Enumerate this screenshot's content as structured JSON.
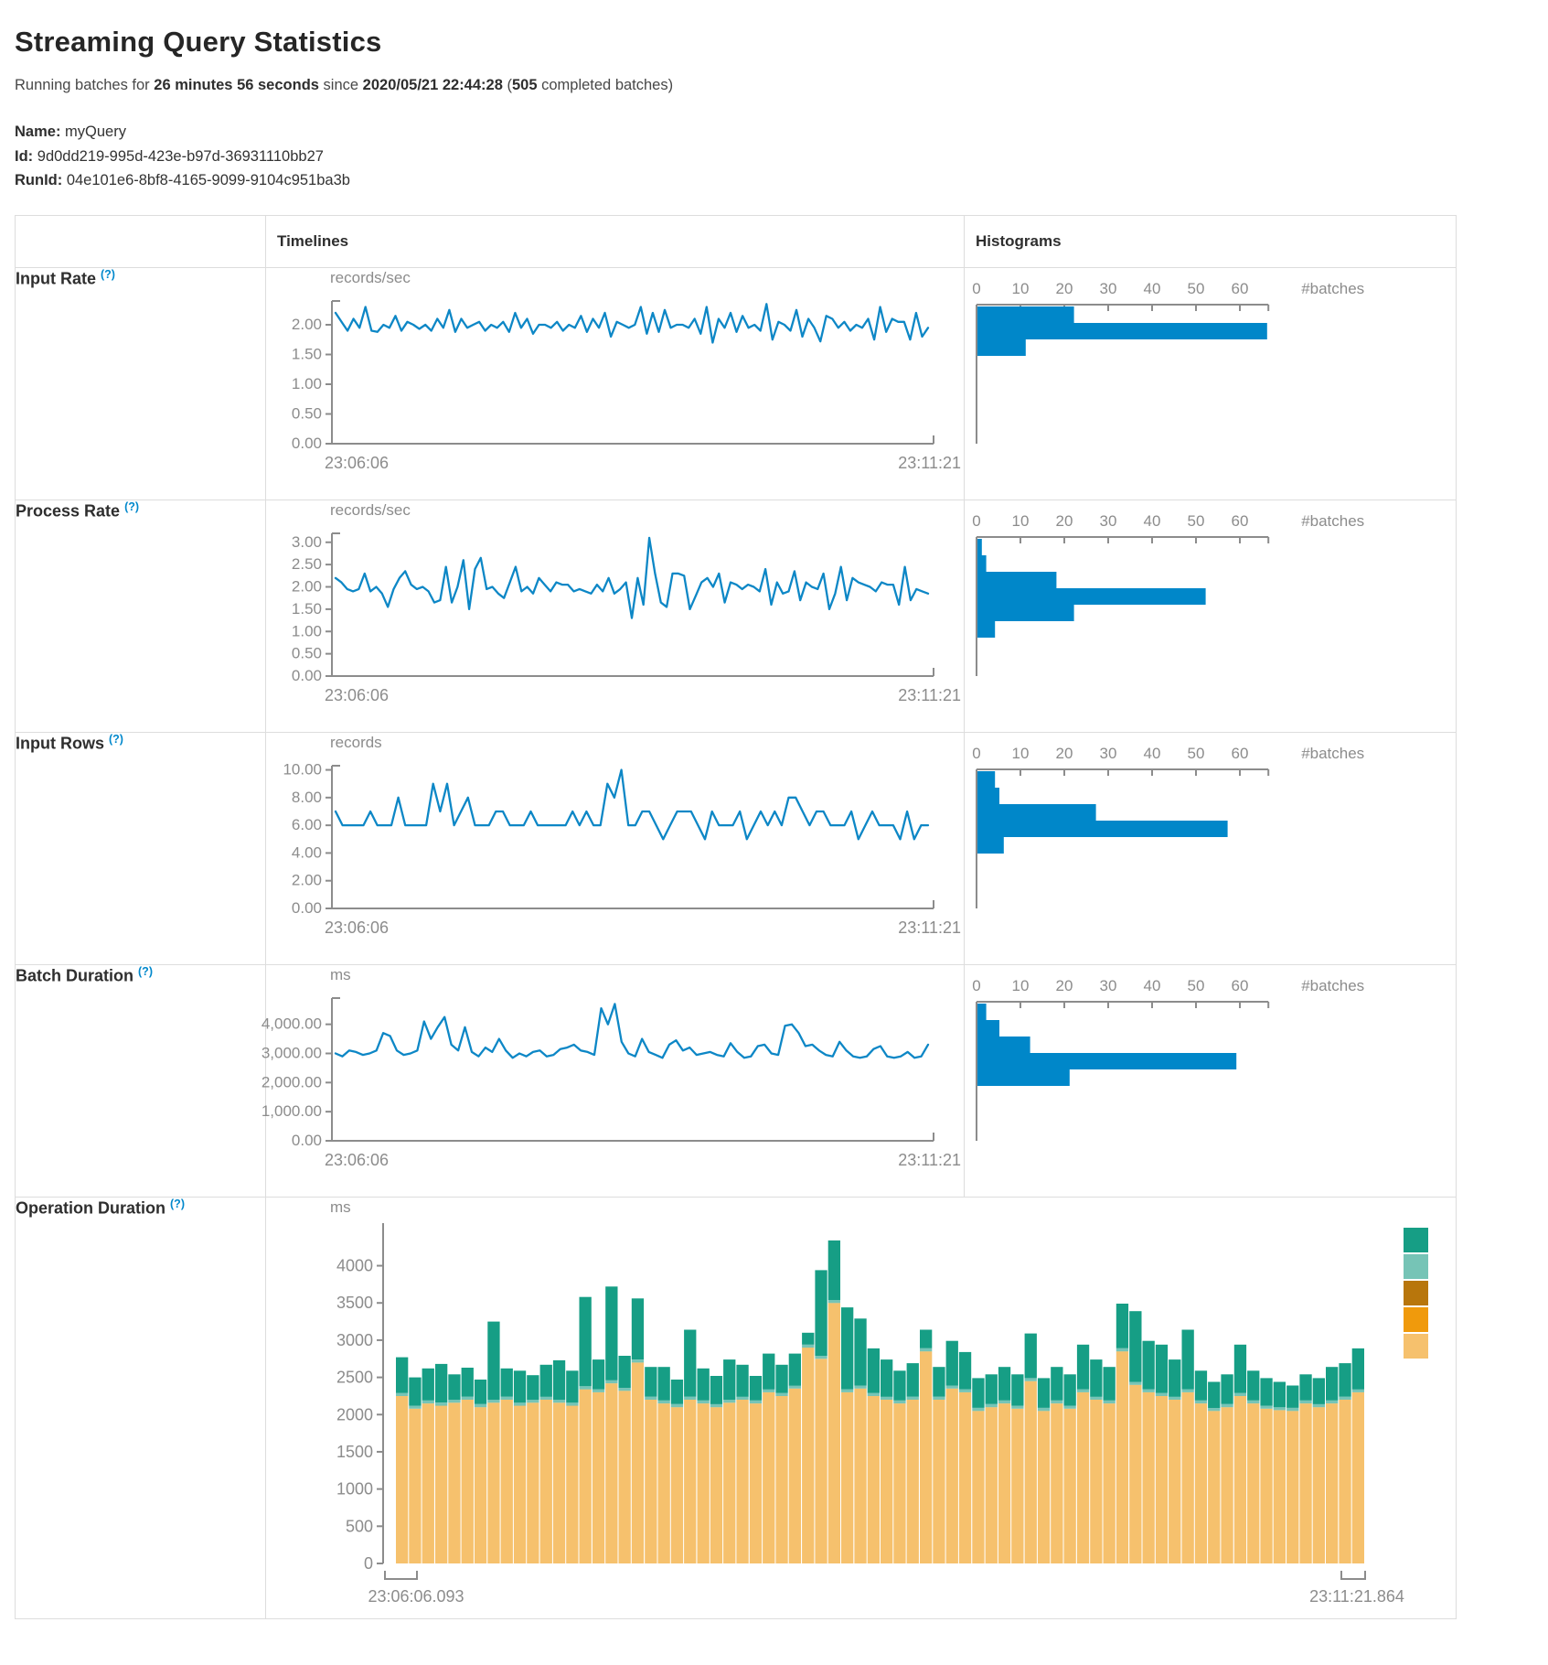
{
  "page": {
    "title": "Streaming Query Statistics",
    "summary": {
      "prefix": "Running batches for",
      "duration": "26 minutes 56 seconds",
      "since": "since",
      "start_time": "2020/05/21 22:44:28",
      "paren_open": "(",
      "completed_count": "505",
      "completed_suffix": "completed batches)"
    },
    "meta": [
      {
        "label": "Name:",
        "value": "myQuery"
      },
      {
        "label": "Id:",
        "value": "9d0dd219-995d-423e-b97d-36931110bb27"
      },
      {
        "label": "RunId:",
        "value": "04e101e6-8bf8-4165-9099-9104c951ba3b"
      }
    ]
  },
  "table": {
    "header": {
      "timelines": "Timelines",
      "histograms": "Histograms"
    },
    "help_marker": "(?)",
    "rows": [
      {
        "label": "Input Rate"
      },
      {
        "label": "Process Rate"
      },
      {
        "label": "Input Rows"
      },
      {
        "label": "Batch Duration"
      },
      {
        "label": "Operation Duration"
      }
    ]
  },
  "colors": {
    "accent_blue": "#0088cc",
    "line_blue": "#0d87c6",
    "hist_blue": "#0087c9",
    "axis_gray": "#8c8c8c"
  },
  "chart_data": [
    {
      "id": "input_rate_timeline",
      "type": "line",
      "title": "Input Rate timeline",
      "unit": "records/sec",
      "x_start": "23:06:06",
      "x_end": "23:11:21",
      "ymax": 2.4,
      "ytick_values": [
        0,
        0.5,
        1,
        1.5,
        2
      ],
      "ytick_labels": [
        "0.00",
        "0.50",
        "1.00",
        "1.50",
        "2.00"
      ],
      "color": "#0d87c6",
      "values": [
        2.2,
        2.05,
        1.9,
        2.1,
        1.95,
        2.3,
        1.9,
        1.88,
        2.0,
        1.95,
        2.15,
        1.9,
        2.05,
        2.0,
        1.93,
        2.0,
        1.9,
        2.1,
        1.95,
        2.25,
        1.88,
        2.1,
        1.95,
        2.0,
        2.05,
        1.9,
        2.0,
        1.95,
        2.05,
        1.88,
        2.2,
        1.95,
        2.1,
        1.85,
        2.0,
        2.0,
        1.95,
        2.05,
        1.9,
        2.0,
        1.95,
        2.15,
        1.88,
        2.1,
        1.95,
        2.2,
        1.8,
        2.05,
        2.0,
        1.95,
        2.0,
        2.3,
        1.85,
        2.2,
        1.88,
        2.25,
        1.95,
        2.0,
        2.0,
        1.95,
        2.1,
        1.85,
        2.3,
        1.7,
        2.1,
        1.95,
        2.2,
        1.88,
        2.15,
        1.95,
        2.0,
        1.9,
        2.35,
        1.75,
        2.05,
        2.0,
        1.9,
        2.25,
        1.8,
        2.1,
        1.95,
        1.72,
        2.15,
        2.1,
        1.95,
        2.05,
        1.9,
        2.0,
        1.95,
        2.1,
        1.75,
        2.3,
        1.88,
        2.1,
        2.05,
        2.05,
        1.75,
        2.2,
        1.8,
        1.95
      ]
    },
    {
      "id": "input_rate_hist",
      "type": "bar",
      "title": "Input Rate histogram",
      "axis_label": "#batches",
      "xtick_values": [
        0,
        10,
        20,
        30,
        40,
        50,
        60
      ],
      "xmax": 66.5,
      "color": "#0087c9",
      "counts": [
        22,
        66,
        11
      ]
    },
    {
      "id": "process_rate_timeline",
      "type": "line",
      "title": "Process Rate timeline",
      "unit": "records/sec",
      "x_start": "23:06:06",
      "x_end": "23:11:21",
      "ymax": 3.2,
      "ytick_values": [
        0,
        0.5,
        1,
        1.5,
        2,
        2.5,
        3
      ],
      "ytick_labels": [
        "0.00",
        "0.50",
        "1.00",
        "1.50",
        "2.00",
        "2.50",
        "3.00"
      ],
      "color": "#0d87c6",
      "values": [
        2.2,
        2.1,
        1.95,
        1.9,
        1.95,
        2.3,
        1.9,
        2.0,
        1.85,
        1.55,
        1.95,
        2.2,
        2.35,
        2.05,
        1.95,
        2.0,
        1.9,
        1.65,
        1.7,
        2.45,
        1.65,
        2.0,
        2.6,
        1.5,
        2.4,
        2.65,
        1.95,
        2.0,
        1.85,
        1.75,
        2.1,
        2.45,
        1.9,
        2.0,
        1.85,
        2.2,
        2.05,
        1.9,
        2.1,
        2.05,
        2.05,
        1.9,
        1.95,
        1.9,
        1.85,
        2.05,
        1.9,
        2.2,
        1.85,
        1.95,
        2.1,
        1.3,
        2.2,
        1.6,
        3.1,
        2.3,
        1.65,
        1.55,
        2.3,
        2.3,
        2.25,
        1.5,
        1.8,
        2.1,
        2.2,
        2.0,
        2.3,
        1.65,
        2.1,
        2.05,
        1.95,
        2.05,
        2.0,
        1.9,
        2.4,
        1.6,
        2.1,
        1.85,
        1.9,
        2.35,
        1.7,
        2.1,
        2.0,
        1.95,
        2.3,
        1.5,
        1.85,
        2.45,
        1.7,
        2.2,
        2.1,
        2.05,
        2.0,
        1.9,
        2.1,
        2.05,
        2.05,
        1.6,
        2.45,
        1.7,
        1.95,
        1.9,
        1.85
      ]
    },
    {
      "id": "process_rate_hist",
      "type": "bar",
      "title": "Process Rate histogram",
      "axis_label": "#batches",
      "xtick_values": [
        0,
        10,
        20,
        30,
        40,
        50,
        60
      ],
      "xmax": 66.5,
      "color": "#0087c9",
      "counts": [
        1,
        2,
        18,
        52,
        22,
        4
      ]
    },
    {
      "id": "input_rows_timeline",
      "type": "line",
      "title": "Input Rows timeline",
      "unit": "records",
      "x_start": "23:06:06",
      "x_end": "23:11:21",
      "ymax": 10.3,
      "ytick_values": [
        0,
        2,
        4,
        6,
        8,
        10
      ],
      "ytick_labels": [
        "0.00",
        "2.00",
        "4.00",
        "6.00",
        "8.00",
        "10.00"
      ],
      "color": "#0d87c6",
      "values": [
        7,
        6,
        6,
        6,
        6,
        7,
        6,
        6,
        6,
        8,
        6,
        6,
        6,
        6,
        9,
        7,
        9,
        6,
        7,
        8,
        6,
        6,
        6,
        7,
        7,
        6,
        6,
        6,
        7,
        6,
        6,
        6,
        6,
        6,
        7,
        6,
        7,
        6,
        6,
        9,
        8,
        10,
        6,
        6,
        7,
        7,
        6,
        5,
        6,
        7,
        7,
        7,
        6,
        5,
        7,
        6,
        6,
        6,
        7,
        5,
        6,
        7,
        6,
        7,
        6,
        8,
        8,
        7,
        6,
        7,
        7,
        6,
        6,
        6,
        7,
        5,
        6,
        7,
        6,
        6,
        6,
        5,
        7,
        5,
        6,
        6
      ]
    },
    {
      "id": "input_rows_hist",
      "type": "bar",
      "title": "Input Rows histogram",
      "axis_label": "#batches",
      "xtick_values": [
        0,
        10,
        20,
        30,
        40,
        50,
        60
      ],
      "xmax": 66.5,
      "color": "#0087c9",
      "counts": [
        4,
        5,
        27,
        57,
        6
      ]
    },
    {
      "id": "batch_duration_timeline",
      "type": "line",
      "title": "Batch Duration timeline",
      "unit": "ms",
      "x_start": "23:06:06",
      "x_end": "23:11:21",
      "ymax": 4900,
      "ytick_values": [
        0,
        1000,
        2000,
        3000,
        4000
      ],
      "ytick_labels": [
        "0.00",
        "1,000.00",
        "2,000.00",
        "3,000.00",
        "4,000.00"
      ],
      "color": "#0d87c6",
      "values": [
        3000,
        2900,
        3100,
        3050,
        2950,
        3000,
        3100,
        3700,
        3600,
        3100,
        2950,
        3000,
        3100,
        4100,
        3500,
        3900,
        4250,
        3300,
        3100,
        3900,
        3050,
        2900,
        3200,
        3050,
        3500,
        3100,
        2850,
        3000,
        2900,
        3050,
        3100,
        2900,
        2950,
        3150,
        3200,
        3300,
        3100,
        3050,
        2950,
        4550,
        4000,
        4700,
        3400,
        3000,
        2900,
        3500,
        3050,
        2950,
        2850,
        3300,
        3450,
        3100,
        3200,
        2950,
        3000,
        3050,
        2950,
        2900,
        3350,
        3050,
        2850,
        2900,
        3250,
        3300,
        3000,
        2950,
        3950,
        4000,
        3700,
        3250,
        3300,
        3100,
        2950,
        2900,
        3400,
        3100,
        2900,
        2850,
        2900,
        3150,
        3250,
        2900,
        2850,
        2900,
        3050,
        2850,
        2900,
        3300
      ]
    },
    {
      "id": "batch_duration_hist",
      "type": "bar",
      "title": "Batch Duration histogram",
      "axis_label": "#batches",
      "xtick_values": [
        0,
        10,
        20,
        30,
        40,
        50,
        60
      ],
      "xmax": 66.5,
      "color": "#0087c9",
      "counts": [
        2,
        5,
        12,
        59,
        21
      ]
    },
    {
      "id": "operation_duration",
      "type": "stacked-bar",
      "title": "Operation Duration",
      "unit": "ms",
      "x_start": "23:06:06.093",
      "x_end": "23:11:21.864",
      "ymax": 4400,
      "ytick_values": [
        0,
        500,
        1000,
        1500,
        2000,
        2500,
        3000,
        3500,
        4000
      ],
      "ytick_labels": [
        "0",
        "500",
        "1000",
        "1500",
        "2000",
        "2500",
        "3000",
        "3500",
        "4000"
      ],
      "segment_colors": {
        "bottom": "#f6c16d",
        "middle": "#76c4b6",
        "top": "#169e85"
      },
      "legend_colors": [
        "#169e85",
        "#76c4b6",
        "#b8760c",
        "#f09a0c",
        "#f6c16d"
      ],
      "middle_value": 40,
      "bottom_values": [
        2250,
        2080,
        2150,
        2120,
        2160,
        2200,
        2100,
        2160,
        2200,
        2120,
        2160,
        2200,
        2160,
        2120,
        2340,
        2300,
        2420,
        2320,
        2700,
        2200,
        2150,
        2100,
        2200,
        2150,
        2100,
        2160,
        2200,
        2150,
        2300,
        2250,
        2350,
        2900,
        2750,
        3500,
        2300,
        2350,
        2250,
        2200,
        2150,
        2200,
        2850,
        2200,
        2350,
        2300,
        2050,
        2100,
        2150,
        2080,
        2450,
        2050,
        2150,
        2080,
        2300,
        2200,
        2150,
        2850,
        2400,
        2300,
        2250,
        2200,
        2300,
        2150,
        2050,
        2100,
        2250,
        2150,
        2080,
        2060,
        2050,
        2150,
        2100,
        2150,
        2200,
        2300
      ],
      "top_values": [
        480,
        380,
        430,
        520,
        340,
        390,
        330,
        1050,
        380,
        430,
        330,
        430,
        530,
        430,
        1200,
        400,
        1260,
        430,
        820,
        400,
        450,
        330,
        900,
        430,
        380,
        540,
        430,
        330,
        480,
        380,
        430,
        160,
        1150,
        800,
        1100,
        900,
        600,
        500,
        400,
        450,
        250,
        400,
        600,
        500,
        400,
        400,
        450,
        420,
        600,
        400,
        450,
        420,
        600,
        500,
        450,
        600,
        950,
        650,
        650,
        500,
        800,
        400,
        350,
        400,
        650,
        400,
        370,
        340,
        300,
        350,
        350,
        450,
        450,
        550
      ]
    }
  ]
}
